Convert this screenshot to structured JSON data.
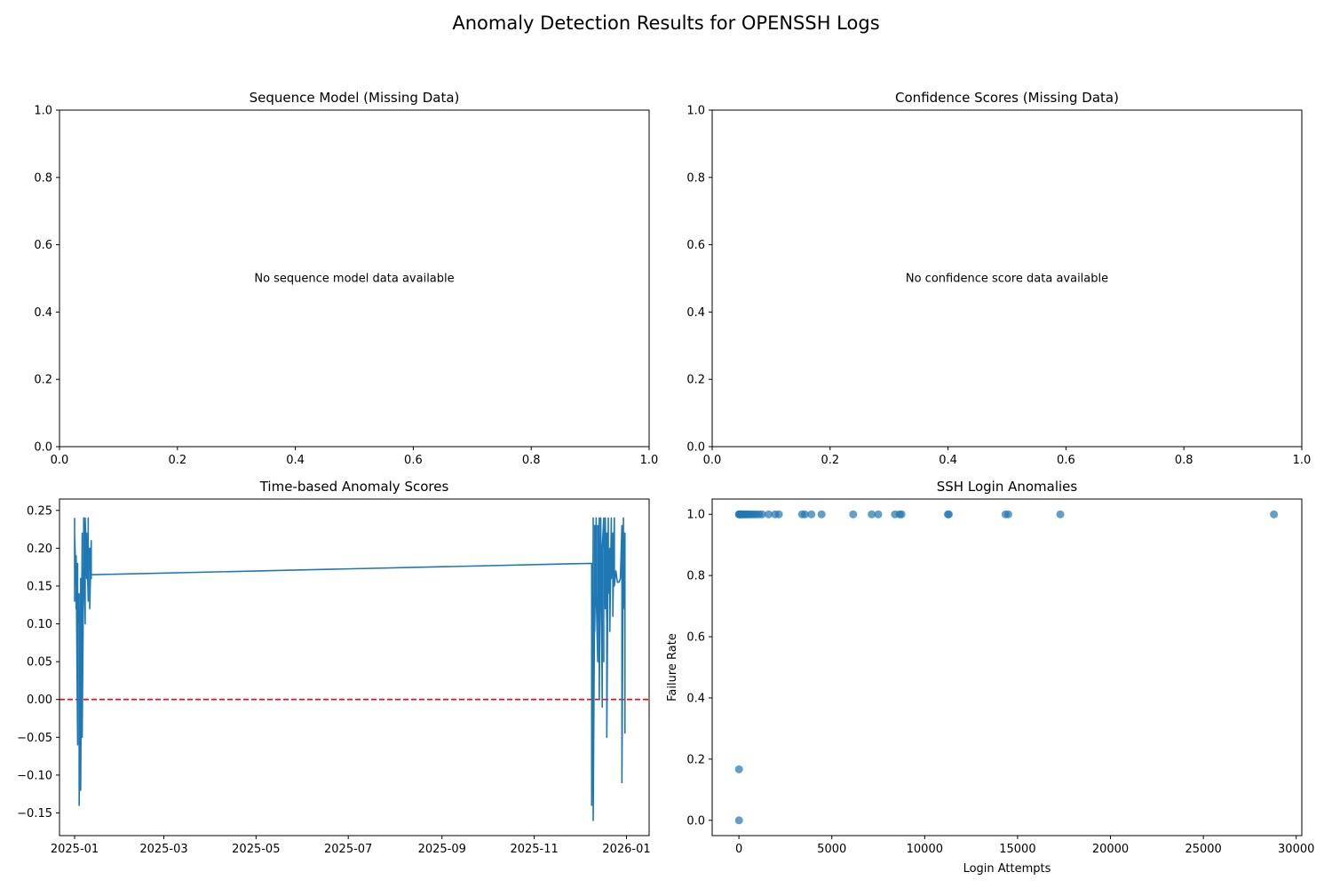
{
  "suptitle": "Anomaly Detection Results for OPENSSH Logs",
  "colors": {
    "line": "#1f77b4",
    "scatter": "#1f77b4",
    "threshold": "#ff0000",
    "axes": "#000000"
  },
  "chart_data": [
    {
      "id": "seq",
      "type": "line",
      "title": "Sequence Model (Missing Data)",
      "message": "No sequence model data available",
      "xlabel": "",
      "ylabel": "",
      "xlim": [
        0,
        1
      ],
      "ylim": [
        0,
        1
      ],
      "xticks": [
        0.0,
        0.2,
        0.4,
        0.6,
        0.8,
        1.0
      ],
      "yticks": [
        0.0,
        0.2,
        0.4,
        0.6,
        0.8,
        1.0
      ],
      "xtick_labels": [
        "0.0",
        "0.2",
        "0.4",
        "0.6",
        "0.8",
        "1.0"
      ],
      "ytick_labels": [
        "0.0",
        "0.2",
        "0.4",
        "0.6",
        "0.8",
        "1.0"
      ],
      "series": []
    },
    {
      "id": "conf",
      "type": "line",
      "title": "Confidence Scores (Missing Data)",
      "message": "No confidence score data available",
      "xlabel": "",
      "ylabel": "",
      "xlim": [
        0,
        1
      ],
      "ylim": [
        0,
        1
      ],
      "xticks": [
        0.0,
        0.2,
        0.4,
        0.6,
        0.8,
        1.0
      ],
      "yticks": [
        0.0,
        0.2,
        0.4,
        0.6,
        0.8,
        1.0
      ],
      "xtick_labels": [
        "0.0",
        "0.2",
        "0.4",
        "0.6",
        "0.8",
        "1.0"
      ],
      "ytick_labels": [
        "0.0",
        "0.2",
        "0.4",
        "0.6",
        "0.8",
        "1.0"
      ],
      "series": []
    },
    {
      "id": "time",
      "type": "line",
      "title": "Time-based Anomaly Scores",
      "xlabel": "",
      "ylabel": "",
      "x_is_date": true,
      "xlim": [
        "2024-12-22",
        "2026-01-16"
      ],
      "ylim": [
        -0.18,
        0.265
      ],
      "xticks": [
        "2025-01-01",
        "2025-03-01",
        "2025-05-01",
        "2025-07-01",
        "2025-09-01",
        "2025-11-01",
        "2026-01-01"
      ],
      "xtick_labels": [
        "2025-01",
        "2025-03",
        "2025-05",
        "2025-07",
        "2025-09",
        "2025-11",
        "2026-01"
      ],
      "yticks": [
        -0.15,
        -0.1,
        -0.05,
        0.0,
        0.05,
        0.1,
        0.15,
        0.2,
        0.25
      ],
      "ytick_labels": [
        "−0.15",
        "−0.10",
        "−0.05",
        "0.00",
        "0.05",
        "0.10",
        "0.15",
        "0.20",
        "0.25"
      ],
      "threshold": 0.0,
      "series": [
        {
          "x": [
            "2025-01-01",
            "2025-01-01",
            "2025-01-01",
            "2025-01-02",
            "2025-01-02",
            "2025-01-02",
            "2025-01-03",
            "2025-01-03",
            "2025-01-03",
            "2025-01-04",
            "2025-01-04",
            "2025-01-05",
            "2025-01-05",
            "2025-01-05",
            "2025-01-06",
            "2025-01-06",
            "2025-01-06",
            "2025-01-07",
            "2025-01-07",
            "2025-01-07",
            "2025-01-08",
            "2025-01-08",
            "2025-01-09",
            "2025-01-09",
            "2025-01-10",
            "2025-01-10",
            "2025-01-10",
            "2025-01-11",
            "2025-01-11",
            "2025-01-12",
            "2025-01-12",
            "2025-01-12",
            "2025-01-13",
            "2025-01-13",
            "2025-12-09",
            "2025-12-09",
            "2025-12-10",
            "2025-12-10",
            "2025-12-10",
            "2025-12-11",
            "2025-12-11",
            "2025-12-11",
            "2025-12-12",
            "2025-12-12",
            "2025-12-13",
            "2025-12-13",
            "2025-12-13",
            "2025-12-14",
            "2025-12-14",
            "2025-12-15",
            "2025-12-15",
            "2025-12-15",
            "2025-12-16",
            "2025-12-16",
            "2025-12-17",
            "2025-12-17",
            "2025-12-17",
            "2025-12-18",
            "2025-12-18",
            "2025-12-19",
            "2025-12-19",
            "2025-12-19",
            "2025-12-20",
            "2025-12-20",
            "2025-12-21",
            "2025-12-21",
            "2025-12-22",
            "2025-12-22",
            "2025-12-23",
            "2025-12-23",
            "2025-12-24",
            "2025-12-24",
            "2025-12-25",
            "2025-12-26",
            "2025-12-27",
            "2025-12-28",
            "2025-12-29",
            "2025-12-29",
            "2025-12-30",
            "2025-12-30",
            "2025-12-31",
            "2025-12-31"
          ],
          "y": [
            0.24,
            0.13,
            0.22,
            0.15,
            0.12,
            0.19,
            -0.06,
            0.18,
            0.1,
            0.14,
            -0.14,
            0.13,
            0.16,
            -0.12,
            0.22,
            0.11,
            -0.05,
            0.18,
            0.15,
            0.24,
            0.1,
            0.24,
            0.16,
            0.22,
            0.13,
            0.24,
            0.17,
            0.2,
            0.12,
            0.21,
            0.16,
            0.165,
            0.165,
            0.165,
            0.18,
            -0.14,
            0.22,
            0.24,
            -0.16,
            0.15,
            0.23,
            0.09,
            0.24,
            0.14,
            0.05,
            0.23,
            0.1,
            0.24,
            0.0,
            0.22,
            0.14,
            0.24,
            -0.01,
            0.2,
            0.24,
            0.05,
            0.23,
            0.12,
            0.24,
            0.1,
            0.22,
            -0.05,
            0.24,
            0.14,
            0.2,
            0.09,
            0.24,
            0.16,
            0.22,
            0.11,
            0.24,
            0.15,
            0.17,
            0.155,
            0.155,
            0.16,
            0.23,
            -0.11,
            0.24,
            0.12,
            0.22,
            -0.045
          ]
        }
      ]
    },
    {
      "id": "ssh",
      "type": "scatter",
      "title": "SSH Login Anomalies",
      "xlabel": "Login Attempts",
      "ylabel": "Failure Rate",
      "xlim": [
        -1440,
        30300
      ],
      "ylim": [
        -0.05,
        1.05
      ],
      "xticks": [
        0,
        5000,
        10000,
        15000,
        20000,
        25000,
        30000
      ],
      "xtick_labels": [
        "0",
        "5000",
        "10000",
        "15000",
        "20000",
        "25000",
        "30000"
      ],
      "yticks": [
        0.0,
        0.2,
        0.4,
        0.6,
        0.8,
        1.0
      ],
      "ytick_labels": [
        "0.0",
        "0.2",
        "0.4",
        "0.6",
        "0.8",
        "1.0"
      ],
      "points": [
        {
          "x": 0,
          "y": 1.0
        },
        {
          "x": 20,
          "y": 1.0
        },
        {
          "x": 50,
          "y": 1.0
        },
        {
          "x": 90,
          "y": 1.0
        },
        {
          "x": 130,
          "y": 1.0
        },
        {
          "x": 180,
          "y": 1.0
        },
        {
          "x": 240,
          "y": 1.0
        },
        {
          "x": 300,
          "y": 1.0
        },
        {
          "x": 370,
          "y": 1.0
        },
        {
          "x": 450,
          "y": 1.0
        },
        {
          "x": 530,
          "y": 1.0
        },
        {
          "x": 620,
          "y": 1.0
        },
        {
          "x": 720,
          "y": 1.0
        },
        {
          "x": 830,
          "y": 1.0
        },
        {
          "x": 950,
          "y": 1.0
        },
        {
          "x": 1100,
          "y": 1.0
        },
        {
          "x": 1250,
          "y": 1.0
        },
        {
          "x": 1600,
          "y": 1.0
        },
        {
          "x": 1950,
          "y": 1.0
        },
        {
          "x": 2150,
          "y": 1.0
        },
        {
          "x": 3400,
          "y": 1.0
        },
        {
          "x": 3550,
          "y": 1.0
        },
        {
          "x": 3900,
          "y": 1.0
        },
        {
          "x": 4450,
          "y": 1.0
        },
        {
          "x": 6150,
          "y": 1.0
        },
        {
          "x": 7150,
          "y": 1.0
        },
        {
          "x": 7500,
          "y": 1.0
        },
        {
          "x": 8400,
          "y": 1.0
        },
        {
          "x": 8650,
          "y": 1.0
        },
        {
          "x": 8750,
          "y": 1.0
        },
        {
          "x": 11250,
          "y": 1.0
        },
        {
          "x": 11300,
          "y": 1.0
        },
        {
          "x": 14350,
          "y": 1.0
        },
        {
          "x": 14500,
          "y": 1.0
        },
        {
          "x": 17300,
          "y": 1.0
        },
        {
          "x": 28800,
          "y": 1.0
        },
        {
          "x": 5,
          "y": 0.1667
        },
        {
          "x": 5,
          "y": 0.0
        }
      ]
    }
  ]
}
